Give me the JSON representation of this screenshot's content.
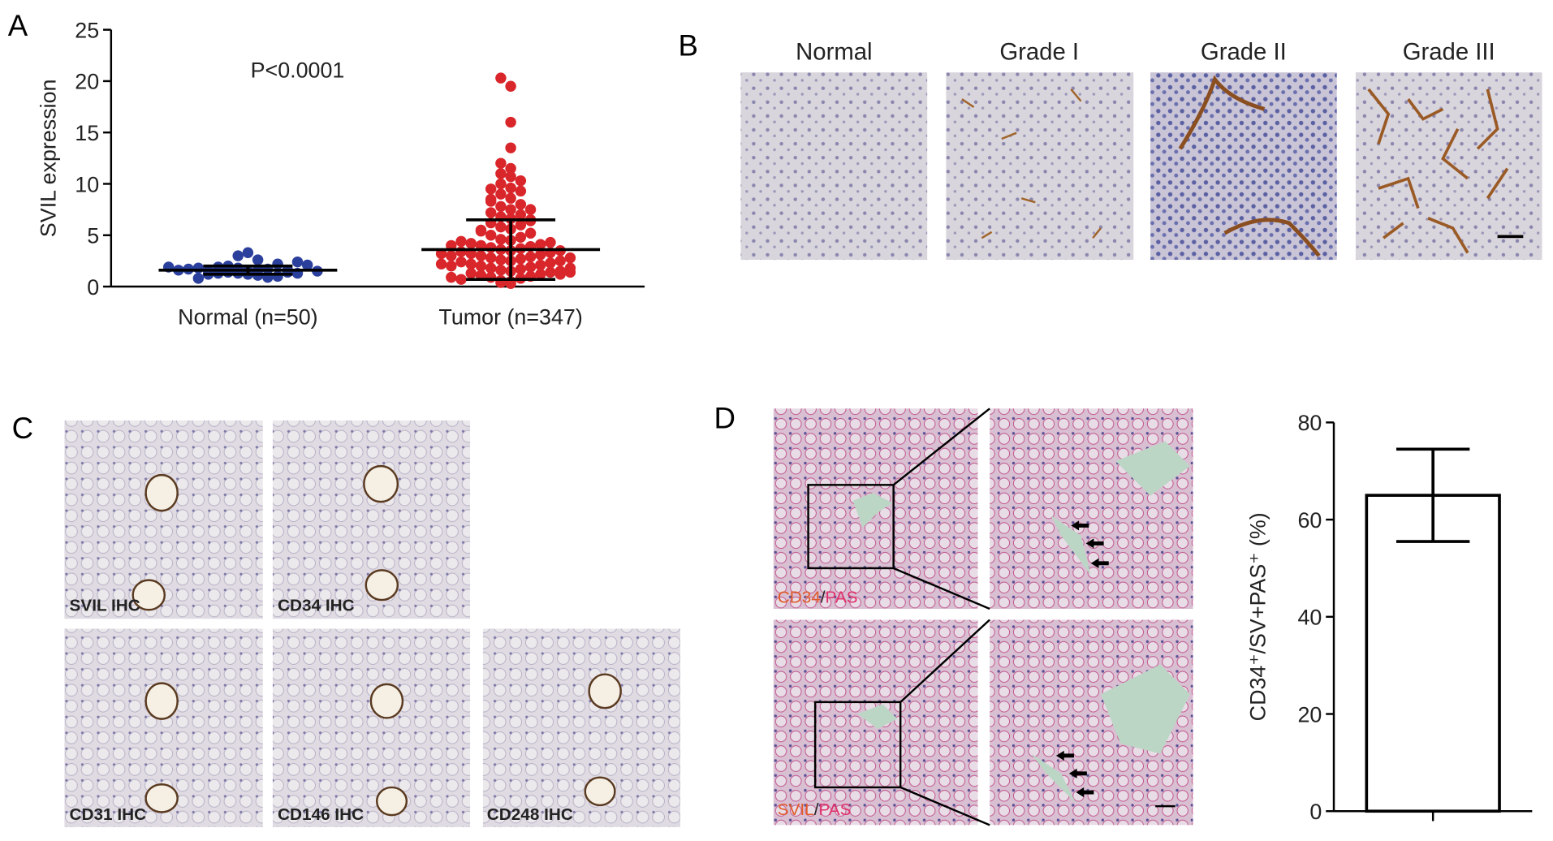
{
  "chart_data": [
    {
      "type": "dotplot",
      "ylabel": "SVIL expression",
      "annotation": "P<0.0001",
      "categories": [
        "Normal (n=50)",
        "Tumor (n=347)"
      ],
      "groups": [
        {
          "color": "#2b3f9c",
          "mean": 1.6,
          "sd": 0.4,
          "values": [
            1.2,
            1.5,
            1.8,
            1.3,
            1.6,
            2.0,
            1.1,
            1.4,
            1.7,
            1.9,
            2.2,
            0.9,
            1.5,
            1.6,
            1.3,
            1.8,
            2.4,
            3.3,
            1.0,
            1.2,
            1.7,
            2.1,
            1.4,
            1.6,
            3.0,
            0.8,
            1.5,
            1.9,
            1.3,
            2.6
          ]
        },
        {
          "color": "#d9262b",
          "mean": 3.6,
          "sd": 2.9,
          "values": [
            0.3,
            0.5,
            0.6,
            0.8,
            0.9,
            1.0,
            1.1,
            1.2,
            1.3,
            1.4,
            1.5,
            1.6,
            1.7,
            1.8,
            1.9,
            2.0,
            2.1,
            2.2,
            2.3,
            2.4,
            2.5,
            2.6,
            2.7,
            2.8,
            2.9,
            3.0,
            3.1,
            3.2,
            3.3,
            3.4,
            3.5,
            3.6,
            3.7,
            3.8,
            3.9,
            4.0,
            4.1,
            4.2,
            4.3,
            4.4,
            4.5,
            4.6,
            4.8,
            5.0,
            5.2,
            5.4,
            5.6,
            5.8,
            6.0,
            6.2,
            6.4,
            6.6,
            6.8,
            7.0,
            7.2,
            7.5,
            7.8,
            8.0,
            8.3,
            8.6,
            9.0,
            9.3,
            9.6,
            10.0,
            10.3,
            10.7,
            11.0,
            11.5,
            12.0,
            13.5,
            16.0,
            19.5,
            20.3,
            0.7,
            1.2,
            1.5,
            2.0,
            2.5,
            3.0,
            3.5,
            4.0,
            1.8,
            2.2,
            2.8,
            3.2,
            0.4,
            0.9,
            1.4,
            5.5,
            6.5,
            7.5,
            8.5,
            9.5
          ]
        }
      ],
      "ylim": [
        0,
        25
      ],
      "yticks": [
        0,
        5,
        10,
        15,
        20,
        25
      ]
    },
    {
      "type": "bar",
      "ylabel": "CD34⁺/SV+PAS⁺ (%)",
      "categories": [
        null
      ],
      "values": [
        65
      ],
      "errors": [
        9.5
      ],
      "color": "#ffffff",
      "ylim": [
        0,
        80
      ],
      "yticks": [
        0,
        20,
        40,
        60,
        80
      ]
    }
  ],
  "panels": {
    "a": {
      "label": "A"
    },
    "b": {
      "label": "B",
      "columns": [
        "Normal",
        "Grade I",
        "Grade II",
        "Grade III"
      ]
    },
    "c": {
      "label": "C",
      "captions": [
        "SVIL IHC",
        "CD34 IHC",
        "CD31 IHC",
        "CD146 IHC",
        "CD248 IHC"
      ]
    },
    "d": {
      "label": "D",
      "captions": [
        {
          "stain": "CD34",
          "separator": "/",
          "counterstain": "PAS"
        },
        {
          "stain": "SVIL",
          "separator": "/",
          "counterstain": "PAS"
        }
      ]
    }
  }
}
